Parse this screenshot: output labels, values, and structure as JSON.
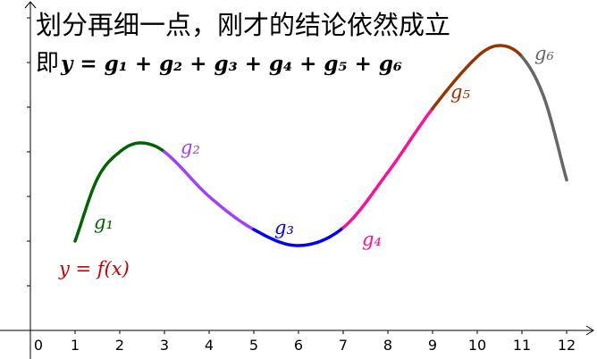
{
  "title": "划分再细一点，刚才的结论依然成立",
  "formula_prefix": "即",
  "formula": "y = g₁ + g₂ + g₃ + g₄ + g₅ + g₆",
  "function_label": "y = f(x)",
  "function_label_color": "#cc0000",
  "chart_data": {
    "type": "line",
    "xlim": [
      -0.7,
      12.6
    ],
    "ylim": [
      -0.6,
      7.3
    ],
    "grid": false,
    "x_ticks": [
      "0",
      "1",
      "2",
      "3",
      "4",
      "5",
      "6",
      "7",
      "8",
      "9",
      "10",
      "11",
      "12"
    ],
    "y_tick_values": [
      1,
      2,
      3,
      4,
      5,
      6,
      7
    ],
    "curve": {
      "x": [
        1,
        1.5,
        2,
        2.46,
        3,
        4,
        5,
        6,
        7,
        8,
        9,
        10,
        10.5,
        11,
        11.5,
        12
      ],
      "y": [
        2.0,
        3.4,
        4.0,
        4.2,
        4.0,
        3.0,
        2.26,
        1.9,
        2.3,
        3.54,
        4.97,
        6.13,
        6.38,
        6.13,
        5.2,
        3.37
      ]
    },
    "series": [
      {
        "name": "g₁",
        "x_range": [
          1,
          3
        ],
        "color": "#006400"
      },
      {
        "name": "g₂",
        "x_range": [
          3,
          5
        ],
        "color": "#a040ff"
      },
      {
        "name": "g₃",
        "x_range": [
          5,
          7
        ],
        "color": "#0000ff"
      },
      {
        "name": "g₄",
        "x_range": [
          7,
          9
        ],
        "color": "#ff0f99"
      },
      {
        "name": "g₅",
        "x_range": [
          9,
          11
        ],
        "color": "#993300"
      },
      {
        "name": "g₆",
        "x_range": [
          11,
          12
        ],
        "color": "#666666"
      }
    ]
  }
}
